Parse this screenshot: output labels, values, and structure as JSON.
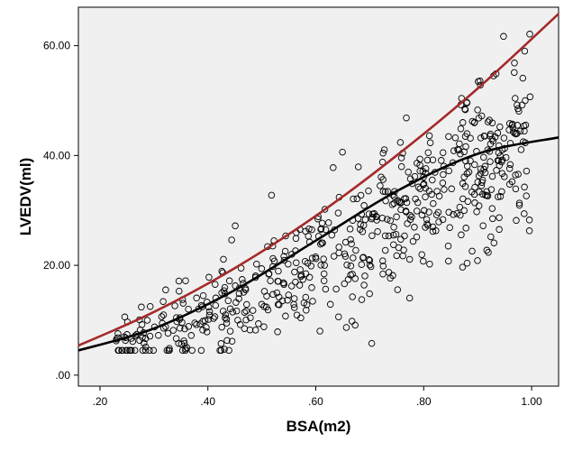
{
  "chart_data": {
    "type": "scatter",
    "title": "",
    "xlabel": "BSA(m2)",
    "ylabel": "LVEDV(ml)",
    "xlim": [
      0.16,
      1.05
    ],
    "ylim": [
      -2,
      67
    ],
    "grid": false,
    "legend": "none",
    "x_ticks": [
      0.2,
      0.4,
      0.6,
      0.8,
      1.0
    ],
    "x_tick_labels": [
      ".20",
      ".40",
      ".60",
      ".80",
      "1.00"
    ],
    "y_ticks": [
      0,
      20,
      40,
      60
    ],
    "y_tick_labels": [
      ".00",
      "20.00",
      "40.00",
      "60.00"
    ],
    "background_color": "#f0f0f0",
    "marker_color": "#000000",
    "series": [
      {
        "type": "scatter",
        "seed": 7,
        "count": 620,
        "x_range": [
          0.23,
          1.0
        ],
        "y_at_min_x": 6.5,
        "y_at_max_x": 44,
        "exponent": 1.35,
        "noise_sd": 2.5,
        "noise_growth": 6.5,
        "y_min": 4.5,
        "y_max": 63
      },
      {
        "type": "line",
        "color": "#a52a2a",
        "x": [
          0.16,
          0.3,
          0.45,
          0.6,
          0.75,
          0.9,
          1.05
        ],
        "y": [
          5.4,
          11.5,
          19.5,
          29.0,
          40.0,
          52.2,
          65.8
        ]
      },
      {
        "type": "line",
        "color": "#000000",
        "x": [
          0.16,
          0.3,
          0.45,
          0.6,
          0.75,
          0.9,
          1.05
        ],
        "y": [
          4.5,
          8.5,
          15.5,
          24.5,
          33.5,
          40.3,
          43.3
        ]
      }
    ]
  }
}
